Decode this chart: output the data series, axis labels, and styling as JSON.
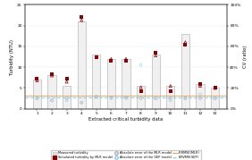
{
  "categories": [
    1,
    2,
    3,
    4,
    5,
    6,
    7,
    8,
    9,
    10,
    11,
    12,
    13
  ],
  "measured_turbidity": [
    7,
    8,
    5.5,
    21,
    13,
    12,
    12,
    5.5,
    13,
    5.5,
    18,
    6,
    5
  ],
  "simulated_mlr": [
    7.2,
    8.3,
    7.3,
    22.0,
    12.3,
    11.5,
    11.5,
    4.2,
    13.5,
    4.3,
    15.5,
    6.0,
    5.0
  ],
  "simulated_gep": [
    6.8,
    8.0,
    6.5,
    21.3,
    12.5,
    12.0,
    12.0,
    5.2,
    12.8,
    5.5,
    16.0,
    5.5,
    5.0
  ],
  "abs_error_mlr": [
    2.5,
    2.0,
    2.5,
    1.5,
    2.8,
    2.8,
    2.8,
    2.5,
    2.5,
    2.5,
    2.5,
    2.5,
    2.5
  ],
  "abs_error_gep": [
    2.5,
    2.0,
    2.0,
    1.5,
    3.0,
    2.5,
    2.5,
    10.5,
    2.5,
    2.0,
    2.5,
    3.5,
    2.5
  ],
  "rmse_mlr_value": 3.2,
  "rmse_gep_value": 2.8,
  "ylim_left": [
    0,
    25
  ],
  "ylim_right": [
    0,
    1.0
  ],
  "bar_color": "#f0f0f0",
  "bar_edge_color": "#aaaaaa",
  "mlr_marker_color": "#8b0000",
  "gep_marker_color": "#8b0000",
  "abs_mlr_marker_color": "#cccccc",
  "abs_gep_marker_color": "#add8e6",
  "rmse_mlr_line_color": "#f4a460",
  "rmse_gep_line_color": "#87ceeb",
  "xlabel": "Extracted critical turbidity data",
  "ylabel_left": "Turbidity (NTU)",
  "ylabel_right": "CV (ratio)",
  "yticks_left": [
    0,
    5,
    10,
    15,
    20,
    25
  ],
  "right_ticks": [
    "0%",
    "20%",
    "40%",
    "60%",
    "80%",
    "100%"
  ],
  "right_tick_vals": [
    0.0,
    0.2,
    0.4,
    0.6,
    0.8,
    1.0
  ],
  "axis_fontsize": 3.8,
  "tick_fontsize": 3.2,
  "legend_fontsize": 2.5
}
